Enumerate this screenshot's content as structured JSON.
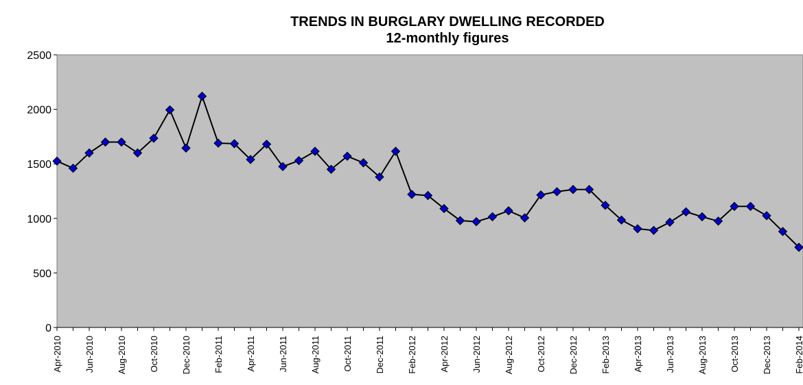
{
  "chart_data": {
    "type": "line",
    "title": "TRENDS IN BURGLARY DWELLING RECORDED",
    "subtitle": "12-monthly figures",
    "categories": [
      "Apr-2010",
      null,
      "Jun-2010",
      null,
      "Aug-2010",
      null,
      "Oct-2010",
      null,
      "Dec-2010",
      null,
      "Feb-2011",
      null,
      "Apr-2011",
      null,
      "Jun-2011",
      null,
      "Aug-2011",
      null,
      "Oct-2011",
      null,
      "Dec-2011",
      null,
      "Feb-2012",
      null,
      "Apr-2012",
      null,
      "Jun-2012",
      null,
      "Aug-2012",
      null,
      "Oct-2012",
      null,
      "Dec-2012",
      null,
      "Feb-2013",
      null,
      "Apr-2013",
      null,
      "Jun-2013",
      null,
      "Aug-2013",
      null,
      "Oct-2013",
      null,
      "Dec-2013",
      null,
      "Feb-2014"
    ],
    "series": [
      {
        "name": "Burglary dwelling",
        "color": "#0000cc",
        "values": [
          1525,
          1460,
          1600,
          1700,
          1700,
          1600,
          1735,
          1995,
          1645,
          2120,
          1690,
          1685,
          1540,
          1680,
          1475,
          1530,
          1615,
          1450,
          1570,
          1510,
          1380,
          1615,
          1220,
          1210,
          1090,
          980,
          970,
          1015,
          1070,
          1005,
          1215,
          1245,
          1265,
          1265,
          1120,
          985,
          905,
          890,
          965,
          1060,
          1015,
          975,
          1110,
          1110,
          1025,
          880,
          735
        ]
      }
    ],
    "ylim": [
      0,
      2500
    ],
    "yticks": [
      0,
      500,
      1000,
      1500,
      2000,
      2500
    ],
    "grid": false
  }
}
